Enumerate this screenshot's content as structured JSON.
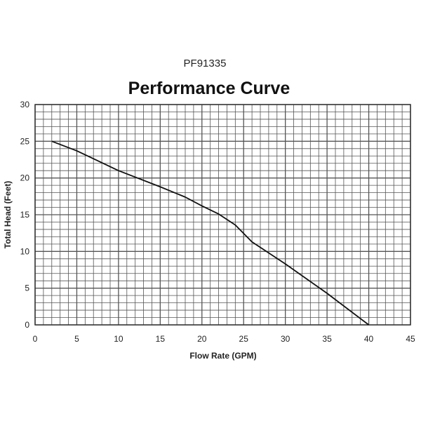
{
  "chart_data": {
    "type": "line",
    "model": "PF91335",
    "title": "Performance Curve",
    "xlabel": "Flow Rate (GPM)",
    "ylabel": "Total Head (Feet)",
    "xlim": [
      0,
      45
    ],
    "ylim": [
      0,
      30
    ],
    "xticks": [
      0,
      5,
      10,
      15,
      20,
      25,
      30,
      35,
      40,
      45
    ],
    "yticks": [
      0,
      5,
      10,
      15,
      20,
      25,
      30
    ],
    "grid": true,
    "legend": "none",
    "series": [
      {
        "x": [
          2,
          5,
          10,
          15,
          18,
          20,
          22,
          24,
          26,
          30,
          35,
          40
        ],
        "y": [
          25,
          23.7,
          21,
          18.8,
          17.4,
          16.2,
          15.1,
          13.6,
          11.3,
          8.3,
          4.3,
          0
        ]
      }
    ],
    "colors": {
      "line": "#111111",
      "grid": "#555555",
      "background": "#ffffff"
    }
  }
}
